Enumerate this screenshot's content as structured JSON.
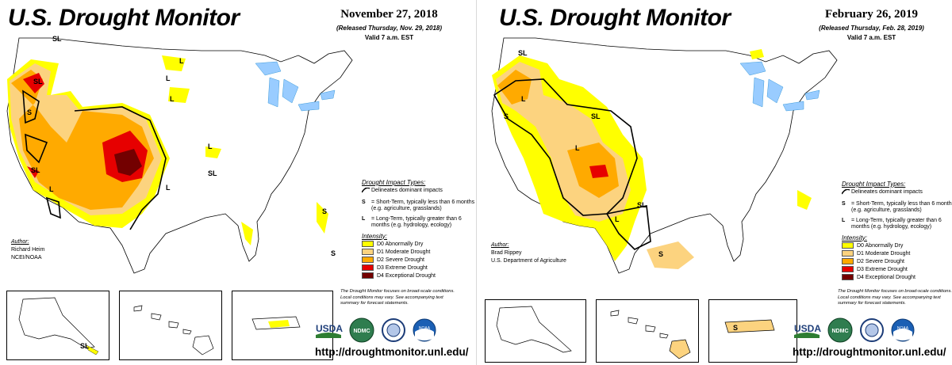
{
  "maps": [
    {
      "title": "U.S. Drought Monitor",
      "date": "November 27, 2018",
      "released": "(Released Thursday, Nov. 29, 2018)",
      "valid": "Valid 7 a.m. EST",
      "author_label": "Author:",
      "author_name": "Richard Heim",
      "author_org": "NCEI/NOAA",
      "map_labels": [
        "SL",
        "L",
        "SL",
        "S",
        "L",
        "SL",
        "SL",
        "L",
        "L",
        "S",
        "S",
        "L",
        "L",
        "SL"
      ],
      "url": "http://droughtmonitor.unl.edu/"
    },
    {
      "title": "U.S. Drought Monitor",
      "date": "February 26, 2019",
      "released": "(Released Thursday, Feb. 28, 2019)",
      "valid": "Valid 7 a.m. EST",
      "author_label": "Author:",
      "author_name": "Brad Rippey",
      "author_org": "U.S. Department of Agriculture",
      "map_labels": [
        "SL",
        "L",
        "SL",
        "SL",
        "L",
        "L",
        "S",
        "S"
      ],
      "url": "http://droughtmonitor.unl.edu/"
    }
  ],
  "legend": {
    "impact_header": "Drought Impact Types:",
    "delineates": "Delineates dominant impacts",
    "short_term_key": "S",
    "short_term": "= Short-Term, typically less than 6 months (e.g. agriculture, grasslands)",
    "long_term_key": "L",
    "long_term": "= Long-Term, typically greater than 6 months (e.g. hydrology, ecology)",
    "intensity_header": "Intensity:",
    "categories": [
      {
        "code": "D0",
        "label": "D0 Abnormally Dry",
        "color": "#ffff00"
      },
      {
        "code": "D1",
        "label": "D1 Moderate Drought",
        "color": "#fcd37f"
      },
      {
        "code": "D2",
        "label": "D2 Severe Drought",
        "color": "#ffaa00"
      },
      {
        "code": "D3",
        "label": "D3 Extreme Drought",
        "color": "#e60000"
      },
      {
        "code": "D4",
        "label": "D4 Exceptional Drought",
        "color": "#730000"
      }
    ],
    "note": "The Drought Monitor focuses on broad-scale conditions. Local conditions may vary. See accompanying text summary for forecast statements."
  },
  "logos": [
    "USDA",
    "NDMC",
    "DOC",
    "NOAA"
  ],
  "colors": {
    "water": "#99ccff",
    "river": "#3d9bd9",
    "border": "#000000"
  }
}
